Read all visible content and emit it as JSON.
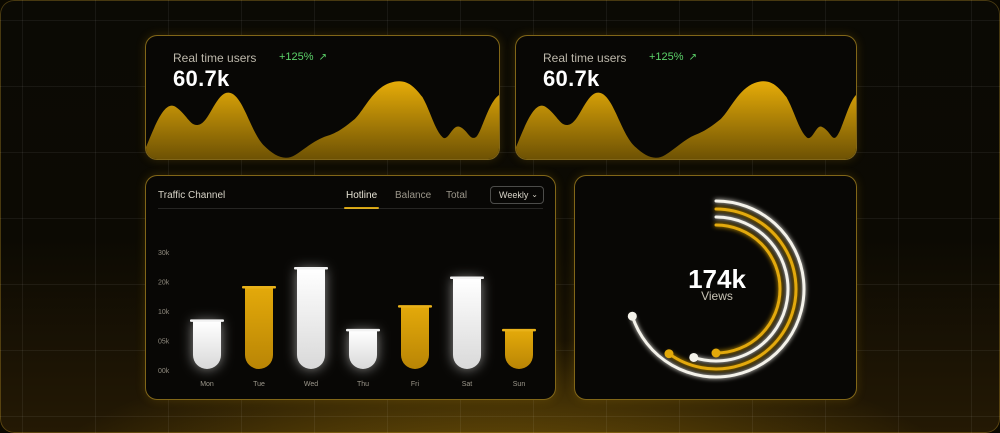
{
  "colors": {
    "accent": "#d6a30b",
    "positive": "#5cd36a",
    "bar_white": "#f2f2f2",
    "card_border": "#e6b428"
  },
  "realtime_cards": [
    {
      "label": "Real time users",
      "value": "60.7k",
      "change": "+125%",
      "trend_icon": "trend-up-icon"
    },
    {
      "label": "Real time users",
      "value": "60.7k",
      "change": "+125%",
      "trend_icon": "trend-up-icon"
    }
  ],
  "traffic_channel": {
    "title": "Traffic Channel",
    "tabs": [
      {
        "label": "Hotline",
        "active": true
      },
      {
        "label": "Balance",
        "active": false
      },
      {
        "label": "Total",
        "active": false
      }
    ],
    "period_select": {
      "value": "Weekly",
      "icon": "chevron-down-icon"
    }
  },
  "views": {
    "value": "174k",
    "label": "Views",
    "rings": [
      {
        "color": "white",
        "fraction": 0.7
      },
      {
        "color": "gold",
        "fraction": 0.6
      },
      {
        "color": "white",
        "fraction": 0.55
      },
      {
        "color": "gold",
        "fraction": 0.5
      }
    ]
  },
  "chart_data": {
    "type": "bar",
    "title": "Traffic Channel",
    "categories": [
      "Mon",
      "Tue",
      "Wed",
      "Thu",
      "Fri",
      "Sat",
      "Sun"
    ],
    "values": [
      10,
      17,
      21,
      8,
      13,
      19,
      8
    ],
    "bar_colors": [
      "white",
      "gold",
      "white",
      "white",
      "gold",
      "white",
      "gold"
    ],
    "y_ticks": [
      "00k",
      "05k",
      "10k",
      "20k",
      "30k"
    ],
    "ylim": [
      0,
      30
    ],
    "grid": false,
    "xlabel": "",
    "ylabel": ""
  }
}
